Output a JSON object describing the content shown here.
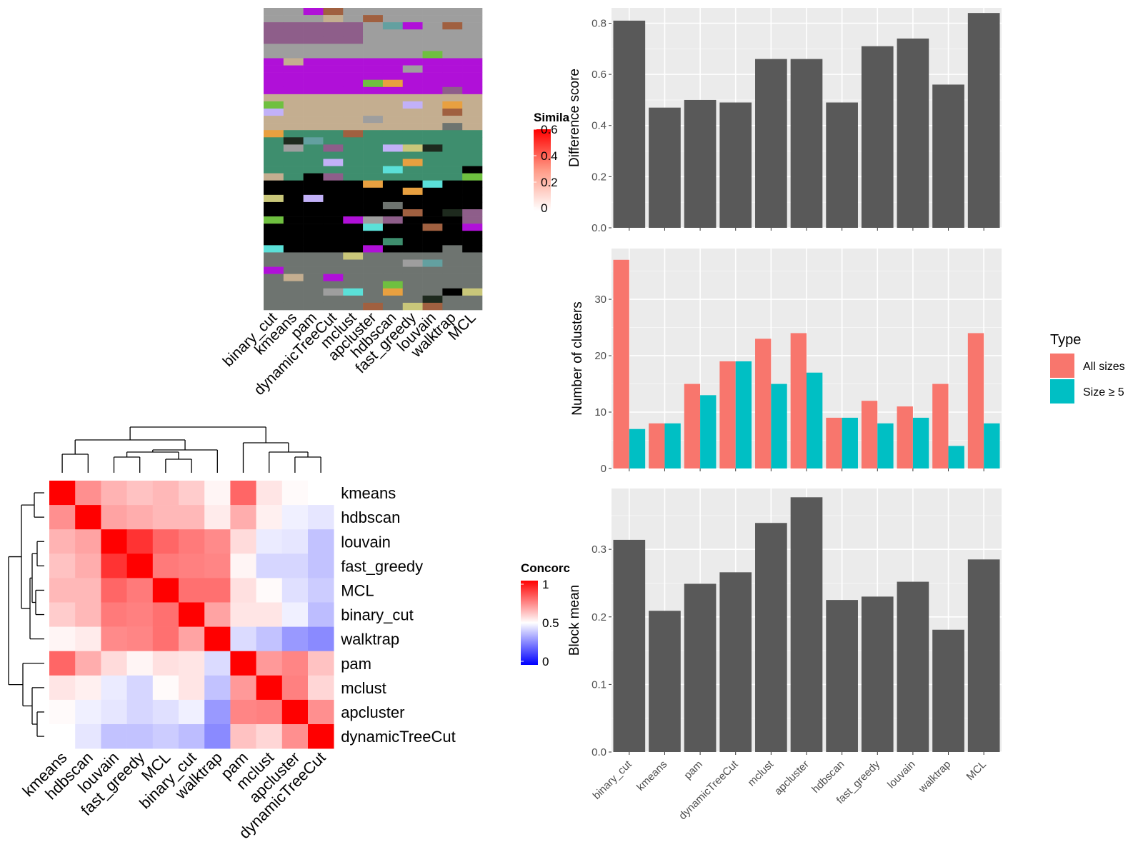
{
  "similarity_legend": {
    "title": "Simila",
    "ticks": [
      "0.6",
      "0.4",
      "0.2",
      "0"
    ]
  },
  "concordance_legend": {
    "title": "Concorc",
    "ticks": [
      "1",
      "0.5",
      "0"
    ]
  },
  "type_legend": {
    "title": "Type",
    "entries": [
      {
        "label": "All sizes",
        "color": "#F8766D"
      },
      {
        "label": "Size ≥ 5",
        "color": "#00BFC4"
      }
    ]
  },
  "membership_methods": [
    "binary_cut",
    "kmeans",
    "pam",
    "dynamicTreeCut",
    "mclust",
    "apcluster",
    "hdbscan",
    "fast_greedy",
    "louvain",
    "walktrap",
    "MCL"
  ],
  "chart_data": [
    {
      "type": "heatmap",
      "title": "",
      "colorscale": {
        "min": 0,
        "max": 0.6,
        "low": "#ffffff",
        "high": "#ff0000"
      },
      "note": "similarity matrix, blocks along diagonal"
    },
    {
      "type": "heatmap",
      "title": "",
      "methods": [
        "kmeans",
        "hdbscan",
        "louvain",
        "fast_greedy",
        "MCL",
        "binary_cut",
        "walktrap",
        "pam",
        "mclust",
        "apcluster",
        "dynamicTreeCut"
      ],
      "colorscale": {
        "min": 0,
        "mid": 0.5,
        "max": 1,
        "low": "#0000ff",
        "midcolor": "#ffffff",
        "high": "#ff0000"
      },
      "values": [
        [
          1.0,
          0.72,
          0.65,
          0.62,
          0.64,
          0.6,
          0.52,
          0.8,
          0.55,
          0.51,
          0.5
        ],
        [
          0.72,
          1.0,
          0.68,
          0.66,
          0.64,
          0.64,
          0.54,
          0.66,
          0.53,
          0.47,
          0.45
        ],
        [
          0.65,
          0.68,
          1.0,
          0.9,
          0.8,
          0.76,
          0.73,
          0.57,
          0.46,
          0.45,
          0.38
        ],
        [
          0.62,
          0.66,
          0.9,
          1.0,
          0.76,
          0.75,
          0.74,
          0.52,
          0.42,
          0.42,
          0.38
        ],
        [
          0.64,
          0.64,
          0.8,
          0.76,
          1.0,
          0.78,
          0.78,
          0.56,
          0.51,
          0.44,
          0.4
        ],
        [
          0.6,
          0.64,
          0.76,
          0.75,
          0.78,
          1.0,
          0.68,
          0.55,
          0.55,
          0.47,
          0.37
        ],
        [
          0.52,
          0.54,
          0.73,
          0.74,
          0.78,
          0.68,
          1.0,
          0.43,
          0.38,
          0.3,
          0.27
        ],
        [
          0.8,
          0.66,
          0.57,
          0.52,
          0.56,
          0.55,
          0.43,
          1.0,
          0.7,
          0.74,
          0.62
        ],
        [
          0.55,
          0.53,
          0.46,
          0.42,
          0.51,
          0.55,
          0.38,
          0.7,
          1.0,
          0.75,
          0.58
        ],
        [
          0.51,
          0.47,
          0.45,
          0.42,
          0.44,
          0.47,
          0.3,
          0.74,
          0.75,
          1.0,
          0.72
        ],
        [
          0.5,
          0.45,
          0.38,
          0.38,
          0.4,
          0.37,
          0.27,
          0.62,
          0.58,
          0.72,
          1.0
        ]
      ]
    },
    {
      "type": "bar",
      "categories": [
        "binary_cut",
        "kmeans",
        "pam",
        "dynamicTreeCut",
        "mclust",
        "apcluster",
        "hdbscan",
        "fast_greedy",
        "louvain",
        "walktrap",
        "MCL"
      ],
      "values": [
        0.81,
        0.47,
        0.5,
        0.49,
        0.66,
        0.66,
        0.49,
        0.71,
        0.74,
        0.56,
        0.84
      ],
      "ylabel": "Difference score",
      "ylim": [
        0,
        0.86
      ],
      "yticks": [
        0.0,
        0.2,
        0.4,
        0.6,
        0.8
      ],
      "ytick_labels": [
        "0.0",
        "0.2",
        "0.4",
        "0.6",
        "0.8"
      ]
    },
    {
      "type": "bar",
      "categories": [
        "binary_cut",
        "kmeans",
        "pam",
        "dynamicTreeCut",
        "mclust",
        "apcluster",
        "hdbscan",
        "fast_greedy",
        "louvain",
        "walktrap",
        "MCL"
      ],
      "series": [
        {
          "name": "All sizes",
          "values": [
            37,
            8,
            15,
            19,
            23,
            24,
            9,
            12,
            11,
            15,
            24
          ]
        },
        {
          "name": "Size ≥ 5",
          "values": [
            7,
            8,
            13,
            19,
            15,
            17,
            9,
            8,
            9,
            4,
            8
          ]
        }
      ],
      "ylabel": "Number of clusters",
      "ylim": [
        0,
        39
      ],
      "yticks": [
        0,
        10,
        20,
        30
      ],
      "ytick_labels": [
        "0",
        "10",
        "20",
        "30"
      ]
    },
    {
      "type": "bar",
      "categories": [
        "binary_cut",
        "kmeans",
        "pam",
        "dynamicTreeCut",
        "mclust",
        "apcluster",
        "hdbscan",
        "fast_greedy",
        "louvain",
        "walktrap",
        "MCL"
      ],
      "values": [
        0.314,
        0.209,
        0.249,
        0.266,
        0.339,
        0.377,
        0.225,
        0.23,
        0.252,
        0.181,
        0.285
      ],
      "ylabel": "Block mean",
      "ylim": [
        0,
        0.39
      ],
      "yticks": [
        0.0,
        0.1,
        0.2,
        0.3
      ],
      "ytick_labels": [
        "0.0",
        "0.1",
        "0.2",
        "0.3"
      ]
    }
  ]
}
